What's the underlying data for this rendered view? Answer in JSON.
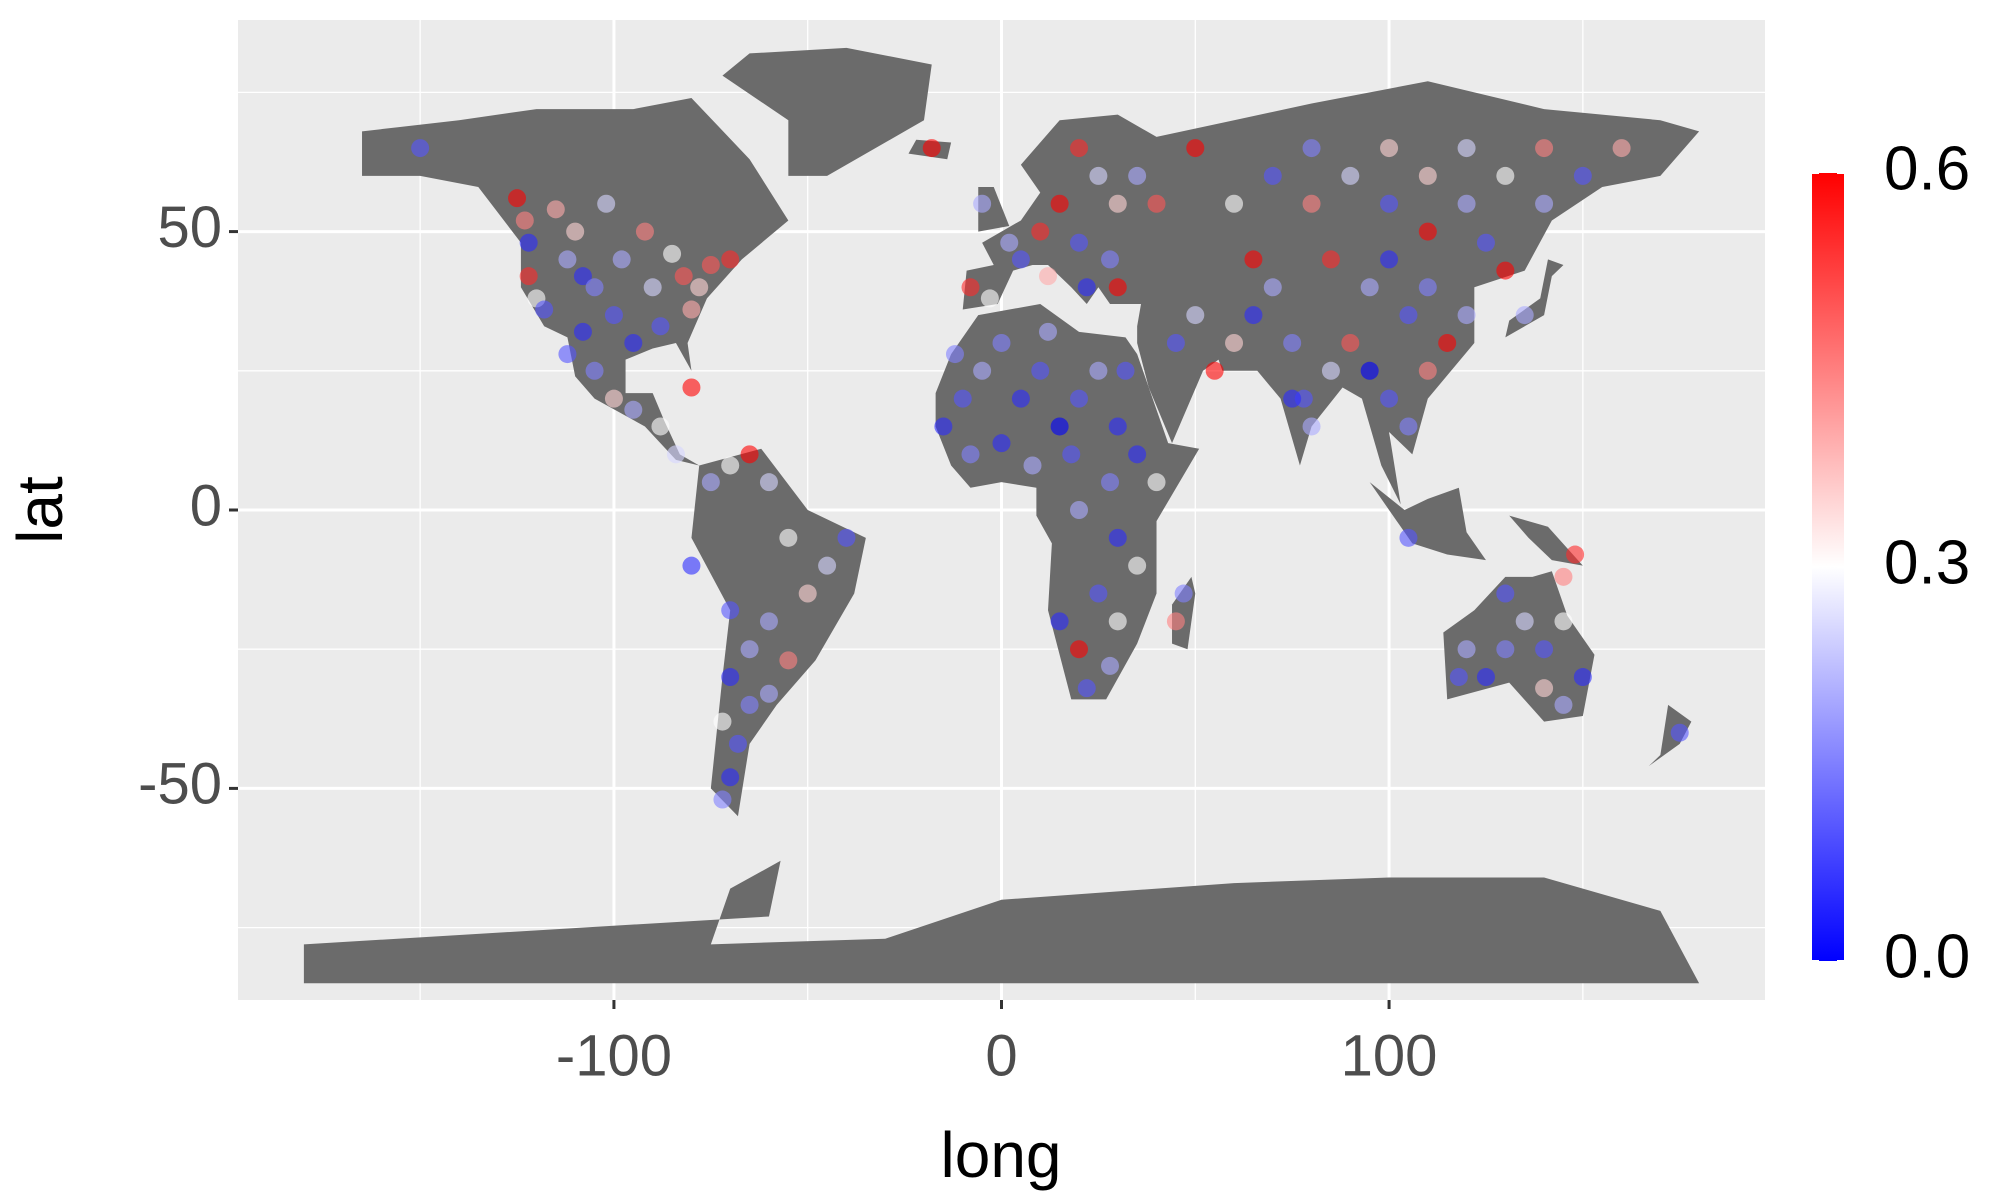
{
  "chart_data": {
    "type": "scatter",
    "x_label": "long",
    "y_label": "lat",
    "xlim": [
      -197,
      197
    ],
    "ylim": [
      -88,
      88
    ],
    "xticks": [
      -100,
      0,
      100
    ],
    "yticks": [
      -50,
      0,
      50
    ],
    "x_minor_ticks": [
      -150,
      -50,
      50,
      150
    ],
    "y_minor_ticks": [
      -75,
      -25,
      25,
      75
    ],
    "grid": true,
    "colorscale": [
      "#0000ff",
      "#ffffff",
      "#ff0000"
    ],
    "clim": [
      0,
      0.6
    ],
    "cticks": [
      {
        "value": 0,
        "label": "0.0"
      },
      0.3,
      {
        "value": 0.6,
        "label": "0.6"
      }
    ],
    "x": [
      -150,
      -125,
      -123,
      -122,
      -122,
      -120,
      -118,
      -115,
      -112,
      -110,
      -108,
      -105,
      -102,
      -100,
      -98,
      -95,
      -92,
      -90,
      -88,
      -85,
      -82,
      -80,
      -78,
      -75,
      -70,
      -105,
      -100,
      -95,
      -88,
      -84,
      -80,
      -112,
      -108,
      -18,
      -75,
      -65,
      -70,
      -60,
      -55,
      -45,
      -40,
      -50,
      -60,
      -70,
      -65,
      -55,
      -70,
      -65,
      -60,
      -72,
      -68,
      -70,
      -72,
      -80,
      -8,
      -3,
      2,
      5,
      10,
      15,
      20,
      25,
      30,
      12,
      22,
      28,
      35,
      40,
      20,
      -5,
      30,
      -15,
      -10,
      -5,
      0,
      5,
      10,
      15,
      20,
      25,
      30,
      -8,
      0,
      8,
      18,
      28,
      35,
      40,
      20,
      30,
      35,
      25,
      15,
      20,
      28,
      22,
      30,
      45,
      47,
      32,
      12,
      -12,
      45,
      50,
      55,
      60,
      65,
      70,
      75,
      78,
      80,
      85,
      75,
      90,
      95,
      100,
      105,
      110,
      115,
      120,
      100,
      105,
      110,
      95,
      60,
      70,
      80,
      90,
      100,
      110,
      120,
      130,
      140,
      150,
      160,
      50,
      65,
      85,
      110,
      130,
      120,
      140,
      100,
      80,
      125,
      135,
      105,
      118,
      120,
      125,
      130,
      135,
      140,
      145,
      150,
      145,
      140,
      130,
      148,
      145,
      175
    ],
    "y": [
      65,
      56,
      52,
      48,
      42,
      38,
      36,
      54,
      45,
      50,
      42,
      40,
      55,
      35,
      45,
      30,
      50,
      40,
      33,
      46,
      42,
      36,
      40,
      44,
      45,
      25,
      20,
      18,
      15,
      10,
      22,
      28,
      32,
      65,
      5,
      10,
      8,
      5,
      -5,
      -10,
      -5,
      -15,
      -20,
      -18,
      -25,
      -27,
      -30,
      -35,
      -33,
      -38,
      -42,
      -48,
      -52,
      -10,
      40,
      38,
      48,
      45,
      50,
      55,
      48,
      60,
      55,
      42,
      40,
      45,
      60,
      55,
      65,
      55,
      40,
      15,
      20,
      25,
      30,
      20,
      25,
      15,
      20,
      25,
      15,
      10,
      12,
      8,
      10,
      5,
      10,
      5,
      0,
      -5,
      -10,
      -15,
      -20,
      -25,
      -28,
      -32,
      -20,
      -20,
      -15,
      25,
      32,
      28,
      30,
      35,
      25,
      30,
      35,
      40,
      30,
      20,
      15,
      25,
      20,
      30,
      40,
      45,
      35,
      40,
      30,
      35,
      20,
      15,
      25,
      25,
      55,
      60,
      55,
      60,
      55,
      60,
      55,
      60,
      55,
      60,
      65,
      65,
      45,
      45,
      50,
      43,
      65,
      65,
      65,
      65,
      48,
      35,
      -5,
      -30,
      -25,
      -30,
      -25,
      -20,
      -25,
      -20,
      -30,
      -35,
      -32,
      -15,
      -8,
      -12,
      -40
    ],
    "values": [
      0.1,
      0.6,
      0.45,
      0.05,
      0.55,
      0.3,
      0.1,
      0.4,
      0.2,
      0.35,
      0.05,
      0.15,
      0.25,
      0.1,
      0.2,
      0.05,
      0.45,
      0.25,
      0.1,
      0.3,
      0.5,
      0.4,
      0.35,
      0.5,
      0.55,
      0.15,
      0.35,
      0.2,
      0.3,
      0.25,
      0.6,
      0.1,
      0.05,
      0.6,
      0.2,
      0.6,
      0.3,
      0.25,
      0.3,
      0.25,
      0.1,
      0.35,
      0.2,
      0.1,
      0.2,
      0.45,
      0.05,
      0.15,
      0.2,
      0.3,
      0.1,
      0.05,
      0.15,
      0.05,
      0.55,
      0.3,
      0.2,
      0.1,
      0.55,
      0.6,
      0.1,
      0.25,
      0.35,
      0.4,
      0.05,
      0.15,
      0.2,
      0.5,
      0.55,
      0.2,
      0.6,
      0.05,
      0.1,
      0.2,
      0.15,
      0.05,
      0.1,
      0,
      0.1,
      0.2,
      0.05,
      0.15,
      0.05,
      0.2,
      0.1,
      0.15,
      0.05,
      0.3,
      0.2,
      0.05,
      0.3,
      0.1,
      0.05,
      0.6,
      0.2,
      0.1,
      0.3,
      0.45,
      0.15,
      0.1,
      0.2,
      0.15,
      0.1,
      0.25,
      0.6,
      0.35,
      0.05,
      0.2,
      0.15,
      0.1,
      0.2,
      0.25,
      0.05,
      0.5,
      0.2,
      0.05,
      0.1,
      0.15,
      0.6,
      0.2,
      0.1,
      0.15,
      0.45,
      0,
      0.3,
      0.1,
      0.45,
      0.25,
      0.1,
      0.35,
      0.2,
      0.3,
      0.2,
      0.1,
      0.4,
      0.6,
      0.6,
      0.55,
      0.6,
      0.6,
      0.25,
      0.45,
      0.35,
      0.15,
      0.1,
      0.2,
      0.1,
      0.1,
      0.2,
      0.05,
      0.15,
      0.25,
      0.1,
      0.3,
      0.05,
      0.2,
      0.35,
      0.1,
      0.55,
      0.45,
      0.1
    ]
  }
}
